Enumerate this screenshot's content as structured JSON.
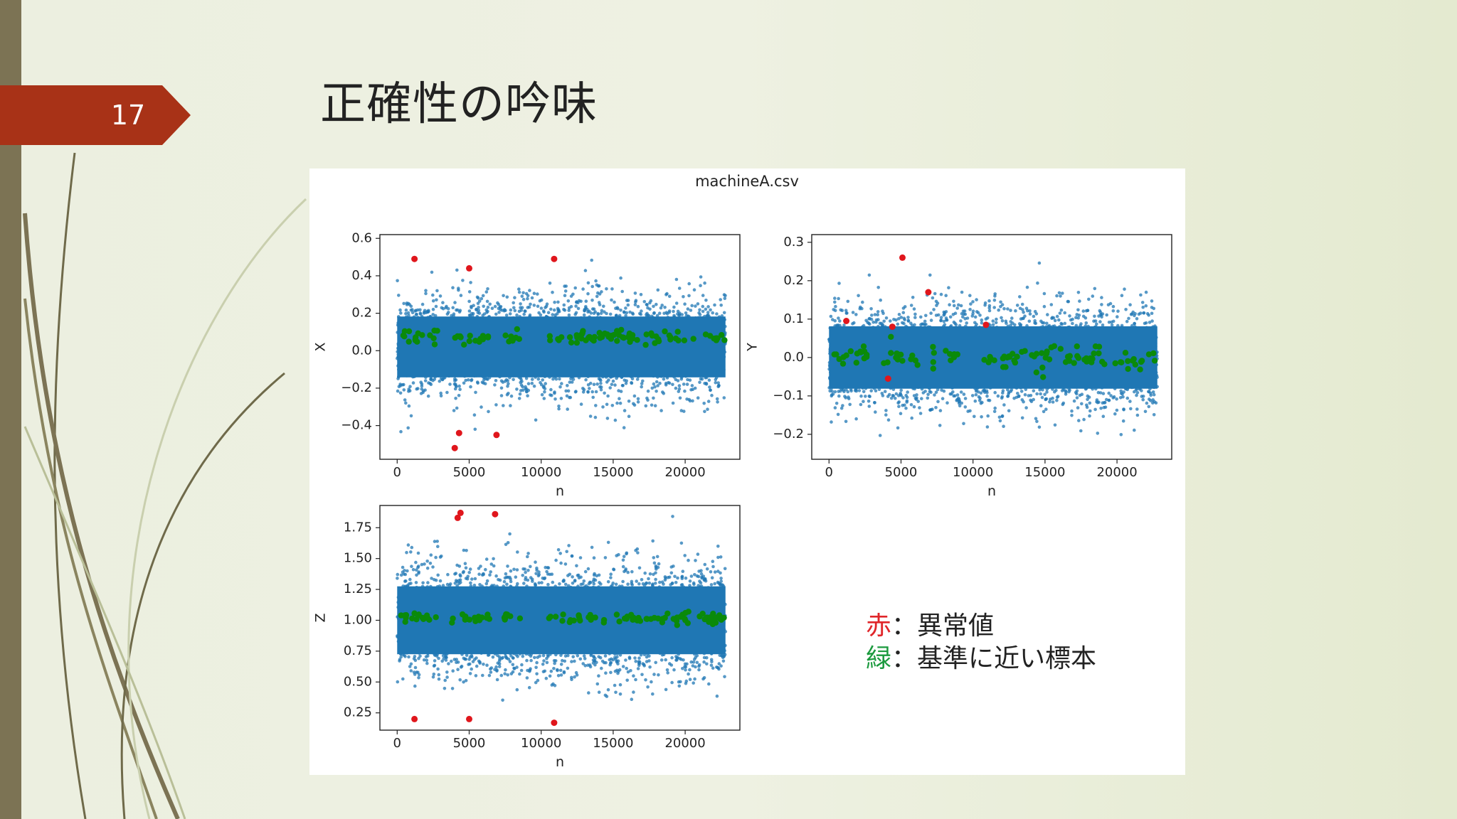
{
  "slide": {
    "number": "17",
    "title": "正確性の吟味",
    "accent_color": "#a83217",
    "bar_color": "#7c7354"
  },
  "legend": {
    "items": [
      {
        "key": "赤",
        "separator": "：",
        "text": "異常値",
        "color": "#e0262a"
      },
      {
        "key": "緑",
        "separator": "：",
        "text": "基準に近い標本",
        "color": "#1b9a3e"
      }
    ]
  },
  "chart_data": {
    "title": "machineA.csv",
    "colors": {
      "bulk": "#1f77b4",
      "anomaly": "#e0161c",
      "near_reference": "#0a8a0a"
    },
    "subplots": [
      {
        "type": "scatter",
        "xlabel": "n",
        "ylabel": "X",
        "xlim": [
          -1200,
          23800
        ],
        "ylim": [
          -0.58,
          0.62
        ],
        "xticks": [
          0,
          5000,
          10000,
          15000,
          20000
        ],
        "xtick_labels": [
          "0",
          "5000",
          "10000",
          "15000",
          "20000"
        ],
        "yticks": [
          -0.4,
          -0.2,
          0.0,
          0.2,
          0.4,
          0.6
        ],
        "ytick_labels": [
          "−0.4",
          "−0.2",
          "0.0",
          "0.2",
          "0.4",
          "0.6"
        ],
        "bulk": {
          "center": 0.02,
          "sd": 0.13,
          "n_max": 22800
        },
        "anomalies": [
          [
            1200,
            0.49
          ],
          [
            5000,
            0.44
          ],
          [
            10900,
            0.49
          ],
          [
            4300,
            -0.44
          ],
          [
            6900,
            -0.45
          ],
          [
            4000,
            -0.52
          ]
        ],
        "near_reference": {
          "clusters": [
            [
              200,
              3000
            ],
            [
              3800,
              6500
            ],
            [
              7200,
              8600
            ],
            [
              10500,
              22800
            ]
          ],
          "y": 0.07,
          "spread": 0.02
        }
      },
      {
        "type": "scatter",
        "xlabel": "n",
        "ylabel": "Y",
        "xlim": [
          -1200,
          23800
        ],
        "ylim": [
          -0.265,
          0.32
        ],
        "xticks": [
          0,
          5000,
          10000,
          15000,
          20000
        ],
        "xtick_labels": [
          "0",
          "5000",
          "10000",
          "15000",
          "20000"
        ],
        "yticks": [
          -0.2,
          -0.1,
          0.0,
          0.1,
          0.2,
          0.3
        ],
        "ytick_labels": [
          "−0.2",
          "−0.1",
          "0.0",
          "0.1",
          "0.2",
          "0.3"
        ],
        "bulk": {
          "center": 0.0,
          "sd": 0.065,
          "n_max": 22800
        },
        "anomalies": [
          [
            5100,
            0.26
          ],
          [
            6900,
            0.17
          ],
          [
            1200,
            0.095
          ],
          [
            4400,
            0.08
          ],
          [
            10900,
            0.085
          ],
          [
            4100,
            -0.055
          ]
        ],
        "near_reference": {
          "clusters": [
            [
              200,
              3000
            ],
            [
              3800,
              6500
            ],
            [
              7200,
              9000
            ],
            [
              10500,
              22800
            ]
          ],
          "y": 0.0,
          "spread": 0.015
        }
      },
      {
        "type": "scatter",
        "xlabel": "n",
        "ylabel": "Z",
        "xlim": [
          -1200,
          23800
        ],
        "ylim": [
          0.11,
          1.93
        ],
        "xticks": [
          0,
          5000,
          10000,
          15000,
          20000
        ],
        "xtick_labels": [
          "0",
          "5000",
          "10000",
          "15000",
          "20000"
        ],
        "yticks": [
          0.25,
          0.5,
          0.75,
          1.0,
          1.25,
          1.5,
          1.75
        ],
        "ytick_labels": [
          "0.25",
          "0.50",
          "0.75",
          "1.00",
          "1.25",
          "1.50",
          "1.75"
        ],
        "bulk": {
          "center": 1.0,
          "sd": 0.22,
          "n_max": 22800
        },
        "anomalies": [
          [
            4200,
            1.83
          ],
          [
            4400,
            1.87
          ],
          [
            6800,
            1.86
          ],
          [
            1200,
            0.2
          ],
          [
            5000,
            0.2
          ],
          [
            10900,
            0.17
          ]
        ],
        "near_reference": {
          "clusters": [
            [
              200,
              3000
            ],
            [
              3800,
              6500
            ],
            [
              7200,
              8600
            ],
            [
              10500,
              22800
            ]
          ],
          "y": 1.02,
          "spread": 0.02
        }
      }
    ]
  }
}
